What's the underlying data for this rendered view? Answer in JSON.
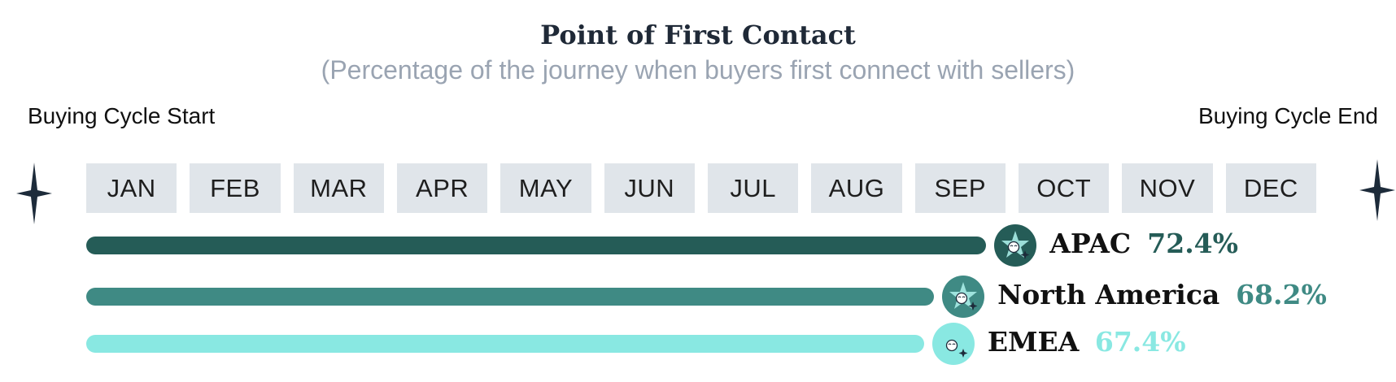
{
  "chart_data": {
    "type": "bar",
    "orientation": "horizontal",
    "title": "Point of First Contact",
    "subtitle": "(Percentage of the journey when buyers first connect with sellers)",
    "axis_start_label": "Buying Cycle Start",
    "axis_end_label": "Buying Cycle End",
    "x_ticks": [
      "JAN",
      "FEB",
      "MAR",
      "APR",
      "MAY",
      "JUN",
      "JUL",
      "AUG",
      "SEP",
      "OCT",
      "NOV",
      "DEC"
    ],
    "xlim": [
      0,
      100
    ],
    "grid": false,
    "categories": [
      "APAC",
      "North America",
      "EMEA"
    ],
    "values": [
      72.4,
      68.2,
      67.4
    ],
    "value_labels": [
      "72.4%",
      "68.2%",
      "67.4%"
    ],
    "colors": [
      "#255c57",
      "#3f8a84",
      "#89e8e2"
    ],
    "badge_colors": [
      "#255c57",
      "#3f8a84",
      "#89e8e2"
    ],
    "badge_icons": [
      "star-contact-icon",
      "star-contact-icon",
      "contact-sparkle-icon"
    ]
  }
}
